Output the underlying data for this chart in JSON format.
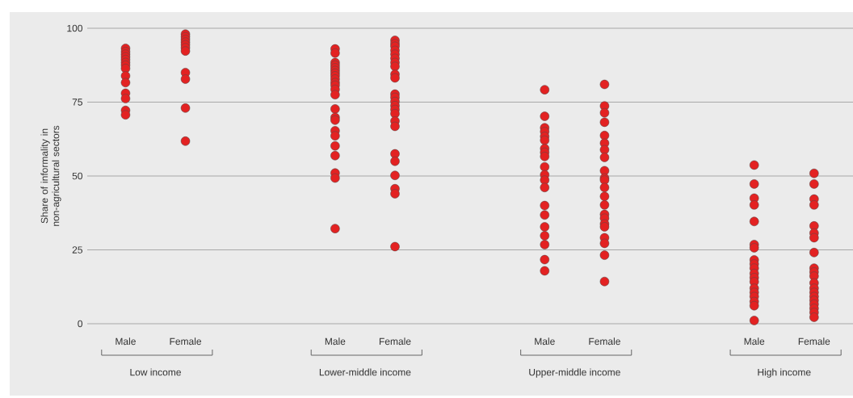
{
  "chart_data": {
    "type": "scatter",
    "ylabel": "Share of informality in non-agricultural sectors",
    "categories": [
      "Low income",
      "Lower-middle income",
      "Upper-middle income",
      "High income"
    ],
    "series": [
      {
        "name": "Male",
        "color": "#e32222",
        "x": [
          "Low income",
          "Low income",
          "Low income",
          "Low income",
          "Low income",
          "Low income",
          "Low income",
          "Low income",
          "Low income",
          "Low income",
          "Low income",
          "Low income",
          "Low income",
          "Low income",
          "Lower-middle income",
          "Lower-middle income",
          "Lower-middle income",
          "Lower-middle income",
          "Lower-middle income",
          "Lower-middle income",
          "Lower-middle income",
          "Lower-middle income",
          "Lower-middle income",
          "Lower-middle income",
          "Lower-middle income",
          "Lower-middle income",
          "Lower-middle income",
          "Lower-middle income",
          "Lower-middle income",
          "Lower-middle income",
          "Lower-middle income",
          "Lower-middle income",
          "Lower-middle income",
          "Lower-middle income",
          "Lower-middle income",
          "Lower-middle income",
          "Lower-middle income",
          "Upper-middle income",
          "Upper-middle income",
          "Upper-middle income",
          "Upper-middle income",
          "Upper-middle income",
          "Upper-middle income",
          "Upper-middle income",
          "Upper-middle income",
          "Upper-middle income",
          "Upper-middle income",
          "Upper-middle income",
          "Upper-middle income",
          "Upper-middle income",
          "Upper-middle income",
          "Upper-middle income",
          "Upper-middle income",
          "Upper-middle income",
          "Upper-middle income",
          "Upper-middle income",
          "Upper-middle income",
          "High income",
          "High income",
          "High income",
          "High income",
          "High income",
          "High income",
          "High income",
          "High income",
          "High income",
          "High income",
          "High income",
          "High income",
          "High income",
          "High income",
          "High income",
          "High income",
          "High income",
          "High income",
          "High income"
        ],
        "values": [
          93.2,
          92.1,
          91.2,
          90.3,
          89.4,
          88.4,
          87.5,
          86.4,
          83.9,
          81.6,
          78.0,
          76.2,
          72.2,
          70.7,
          93.0,
          91.6,
          88.4,
          87.5,
          86.6,
          85.7,
          84.8,
          83.9,
          82.8,
          81.6,
          80.7,
          79.3,
          77.5,
          72.7,
          69.8,
          68.9,
          65.3,
          63.6,
          60.2,
          56.9,
          51.0,
          49.3,
          32.2,
          79.2,
          70.2,
          66.3,
          65.0,
          63.4,
          62.1,
          59.3,
          58.0,
          56.6,
          53.1,
          50.4,
          48.6,
          46.1,
          40.0,
          36.8,
          32.8,
          29.8,
          26.8,
          21.7,
          17.9,
          53.7,
          47.3,
          42.5,
          40.2,
          34.6,
          26.8,
          25.7,
          21.6,
          20.2,
          18.8,
          17.0,
          15.6,
          14.2,
          12.0,
          10.6,
          9.2,
          7.5,
          6.1,
          1.1
        ]
      },
      {
        "name": "Female",
        "color": "#e32222",
        "x": [
          "Low income",
          "Low income",
          "Low income",
          "Low income",
          "Low income",
          "Low income",
          "Low income",
          "Low income",
          "Low income",
          "Low income",
          "Low income",
          "Lower-middle income",
          "Lower-middle income",
          "Lower-middle income",
          "Lower-middle income",
          "Lower-middle income",
          "Lower-middle income",
          "Lower-middle income",
          "Lower-middle income",
          "Lower-middle income",
          "Lower-middle income",
          "Lower-middle income",
          "Lower-middle income",
          "Lower-middle income",
          "Lower-middle income",
          "Lower-middle income",
          "Lower-middle income",
          "Lower-middle income",
          "Lower-middle income",
          "Lower-middle income",
          "Lower-middle income",
          "Lower-middle income",
          "Lower-middle income",
          "Lower-middle income",
          "Lower-middle income",
          "Upper-middle income",
          "Upper-middle income",
          "Upper-middle income",
          "Upper-middle income",
          "Upper-middle income",
          "Upper-middle income",
          "Upper-middle income",
          "Upper-middle income",
          "Upper-middle income",
          "Upper-middle income",
          "Upper-middle income",
          "Upper-middle income",
          "Upper-middle income",
          "Upper-middle income",
          "Upper-middle income",
          "Upper-middle income",
          "Upper-middle income",
          "Upper-middle income",
          "Upper-middle income",
          "Upper-middle income",
          "Upper-middle income",
          "Upper-middle income",
          "High income",
          "High income",
          "High income",
          "High income",
          "High income",
          "High income",
          "High income",
          "High income",
          "High income",
          "High income",
          "High income",
          "High income",
          "High income",
          "High income",
          "High income",
          "High income",
          "High income",
          "High income",
          "High income",
          "High income"
        ],
        "values": [
          98.0,
          97.1,
          96.2,
          95.3,
          94.4,
          93.4,
          92.3,
          85.0,
          82.8,
          73.0,
          61.8,
          95.9,
          94.8,
          93.9,
          92.5,
          91.2,
          89.8,
          88.4,
          87.1,
          84.4,
          83.2,
          77.7,
          76.6,
          75.2,
          73.8,
          72.5,
          71.1,
          68.6,
          66.8,
          57.5,
          55.0,
          50.2,
          45.7,
          44.0,
          26.1,
          81.0,
          73.7,
          71.4,
          68.2,
          63.7,
          61.1,
          58.9,
          56.3,
          51.8,
          49.3,
          48.6,
          46.1,
          43.1,
          40.2,
          37.0,
          35.7,
          33.8,
          32.8,
          29.1,
          27.2,
          23.2,
          14.3,
          50.9,
          47.3,
          42.2,
          40.2,
          33.1,
          30.7,
          29.1,
          24.1,
          18.8,
          17.5,
          16.1,
          13.8,
          12.0,
          10.6,
          9.2,
          7.9,
          6.6,
          5.2,
          3.8,
          2.2
        ]
      }
    ],
    "ylim": [
      0,
      100
    ],
    "yticks": [
      0,
      25,
      50,
      75,
      100
    ],
    "grid": "y",
    "marker": "circle"
  }
}
